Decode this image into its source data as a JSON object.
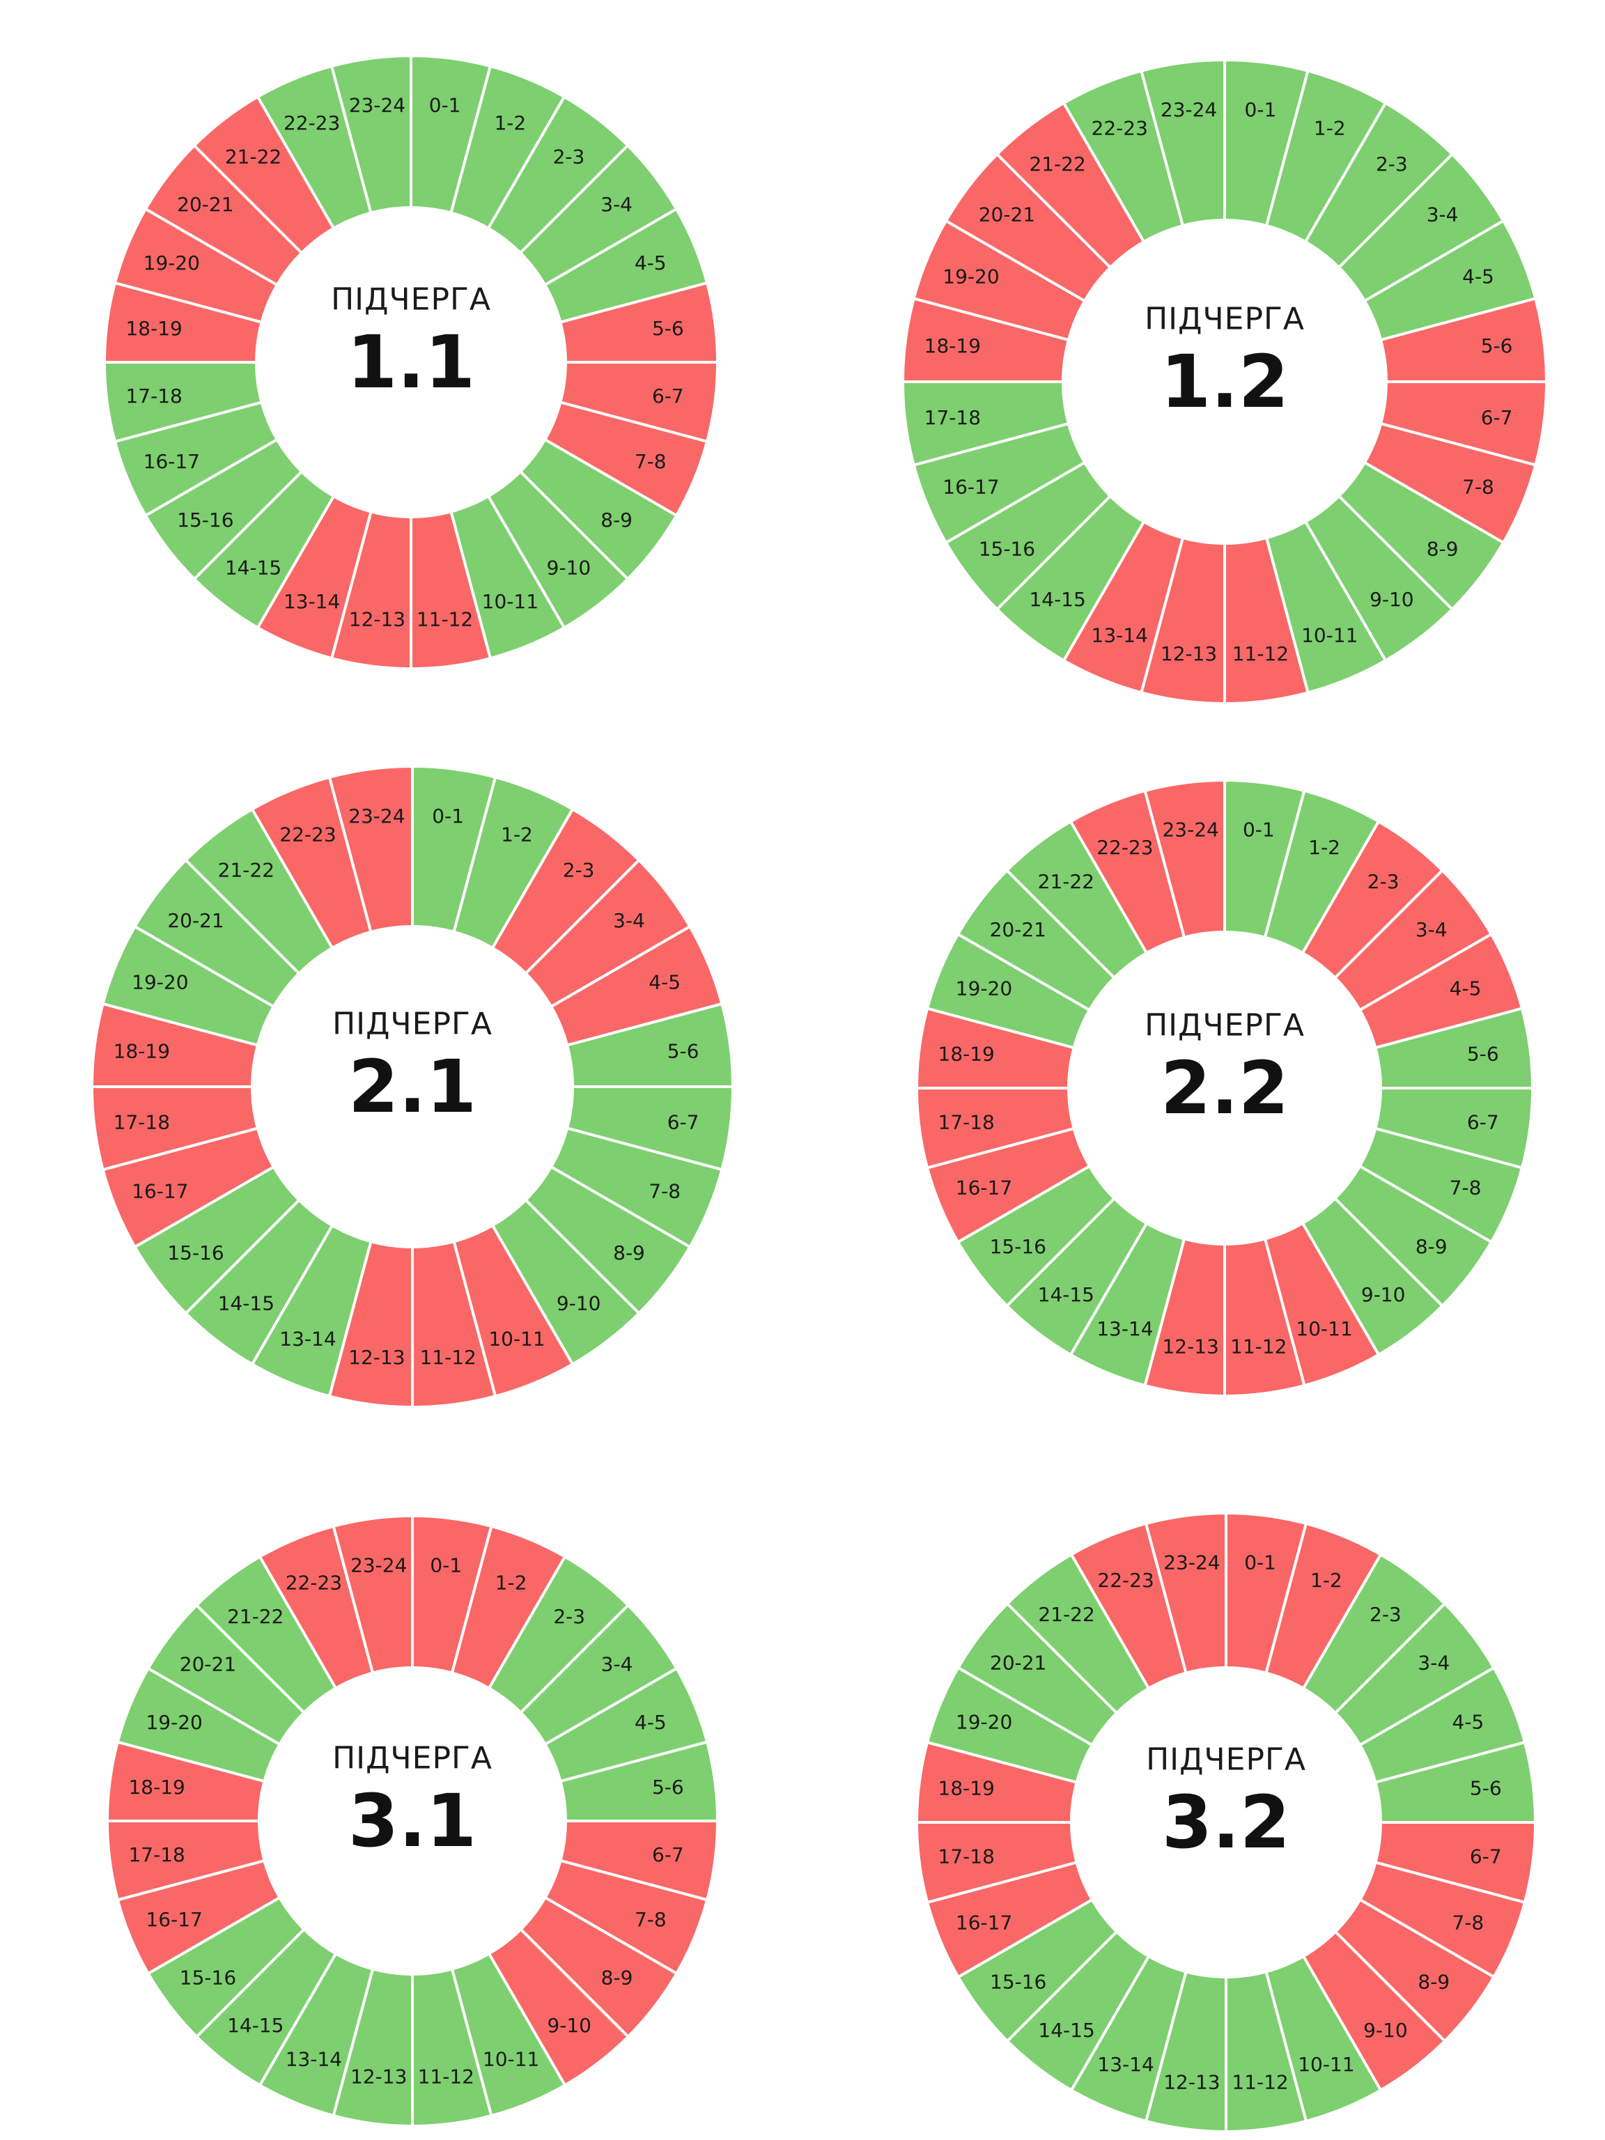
{
  "caption": "ПІДЧЕРГА",
  "colors": {
    "on": "#7dcf6f",
    "off": "#fa6767",
    "separator": "#ffffff"
  },
  "hour_labels": [
    "0-1",
    "1-2",
    "2-3",
    "3-4",
    "4-5",
    "5-6",
    "6-7",
    "7-8",
    "8-9",
    "9-10",
    "10-11",
    "11-12",
    "12-13",
    "13-14",
    "14-15",
    "15-16",
    "16-17",
    "17-18",
    "18-19",
    "19-20",
    "20-21",
    "21-22",
    "22-23",
    "23-24"
  ],
  "groups": [
    {
      "name": "1.1",
      "schedule": [
        "on",
        "on",
        "on",
        "on",
        "on",
        "off",
        "off",
        "off",
        "on",
        "on",
        "on",
        "off",
        "off",
        "off",
        "on",
        "on",
        "on",
        "on",
        "off",
        "off",
        "off",
        "off",
        "on",
        "on"
      ]
    },
    {
      "name": "1.2",
      "schedule": [
        "on",
        "on",
        "on",
        "on",
        "on",
        "off",
        "off",
        "off",
        "on",
        "on",
        "on",
        "off",
        "off",
        "off",
        "on",
        "on",
        "on",
        "on",
        "off",
        "off",
        "off",
        "off",
        "on",
        "on"
      ]
    },
    {
      "name": "2.1",
      "schedule": [
        "on",
        "on",
        "off",
        "off",
        "off",
        "on",
        "on",
        "on",
        "on",
        "on",
        "off",
        "off",
        "off",
        "on",
        "on",
        "on",
        "off",
        "off",
        "off",
        "on",
        "on",
        "on",
        "off",
        "off"
      ]
    },
    {
      "name": "2.2",
      "schedule": [
        "on",
        "on",
        "off",
        "off",
        "off",
        "on",
        "on",
        "on",
        "on",
        "on",
        "off",
        "off",
        "off",
        "on",
        "on",
        "on",
        "off",
        "off",
        "off",
        "on",
        "on",
        "on",
        "off",
        "off"
      ]
    },
    {
      "name": "3.1",
      "schedule": [
        "off",
        "off",
        "on",
        "on",
        "on",
        "on",
        "off",
        "off",
        "off",
        "off",
        "on",
        "on",
        "on",
        "on",
        "on",
        "on",
        "off",
        "off",
        "off",
        "on",
        "on",
        "on",
        "off",
        "off"
      ]
    },
    {
      "name": "3.2",
      "schedule": [
        "off",
        "off",
        "on",
        "on",
        "on",
        "on",
        "off",
        "off",
        "off",
        "off",
        "on",
        "on",
        "on",
        "on",
        "on",
        "on",
        "off",
        "off",
        "off",
        "on",
        "on",
        "on",
        "off",
        "off"
      ]
    }
  ]
}
